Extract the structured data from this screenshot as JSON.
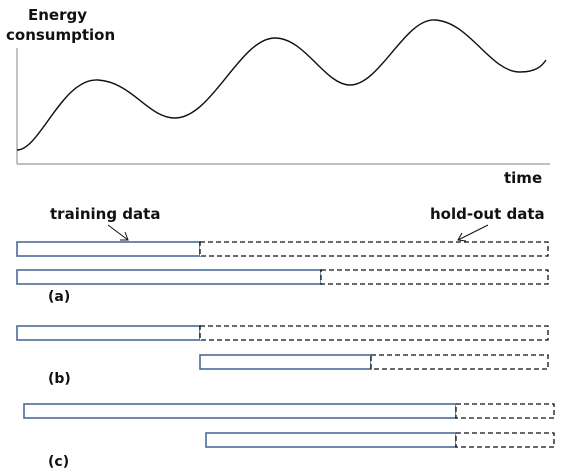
{
  "chart": {
    "ylabel_line1": "Energy",
    "ylabel_line2": "consumption",
    "xlabel": "time"
  },
  "annotations": {
    "training": "training data",
    "holdout": "hold-out data"
  },
  "panels": {
    "a": "(a)",
    "b": "(b)",
    "c": "(c)"
  },
  "colors": {
    "training_bar": "#4a6a9a",
    "holdout_bar": "#111111",
    "axis": "#9a9a9a",
    "curve": "#111111"
  }
}
